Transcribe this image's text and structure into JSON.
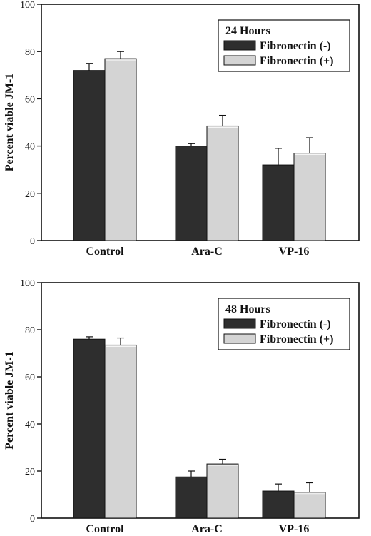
{
  "colors": {
    "fibronectin_minus": "#2e2e2e",
    "fibronectin_plus": "#d4d4d4",
    "axis": "#111111"
  },
  "chart_data": [
    {
      "type": "bar",
      "legend_title": "24  Hours",
      "legend_position": "top-right",
      "categories": [
        "Control",
        "Ara-C",
        "VP-16"
      ],
      "ylabel": "Percent viable JM-1",
      "xlabel": "",
      "ylim": [
        0,
        100
      ],
      "yticks": [
        0,
        20,
        40,
        60,
        80,
        100
      ],
      "series": [
        {
          "name": "Fibronectin (-)",
          "values": [
            72,
            40,
            32
          ],
          "errors": [
            3,
            1,
            7
          ]
        },
        {
          "name": "Fibronectin (+)",
          "values": [
            77,
            48.5,
            37
          ],
          "errors": [
            3,
            4.5,
            6.5
          ]
        }
      ]
    },
    {
      "type": "bar",
      "legend_title": "48  Hours",
      "legend_position": "top-right",
      "categories": [
        "Control",
        "Ara-C",
        "VP-16"
      ],
      "ylabel": "Percent viable JM-1",
      "xlabel": "",
      "ylim": [
        0,
        100
      ],
      "yticks": [
        0,
        20,
        40,
        60,
        80,
        100
      ],
      "series": [
        {
          "name": "Fibronectin (-)",
          "values": [
            76,
            17.5,
            11.5
          ],
          "errors": [
            1,
            2.5,
            3
          ]
        },
        {
          "name": "Fibronectin (+)",
          "values": [
            73.5,
            23,
            11
          ],
          "errors": [
            3,
            2,
            4
          ]
        }
      ]
    }
  ]
}
